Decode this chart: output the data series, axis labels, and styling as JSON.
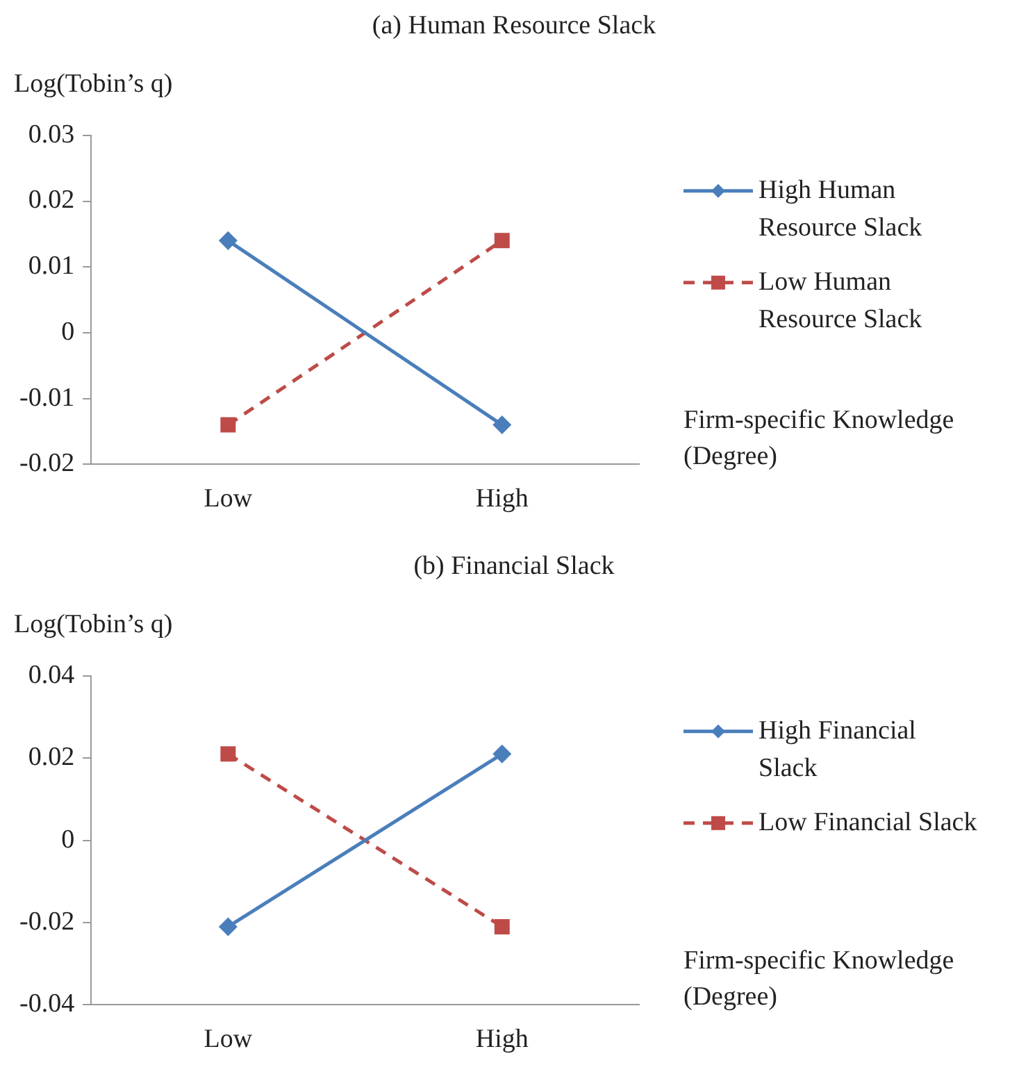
{
  "chart_data": [
    {
      "type": "line",
      "title": "(a) Human Resource Slack",
      "ylabel": "Log(Tobin’s q)",
      "xlabel": "Firm-specific Knowledge (Degree)",
      "categories": [
        "Low",
        "High"
      ],
      "ylim": [
        -0.02,
        0.03
      ],
      "yticks": [
        -0.02,
        -0.01,
        0,
        0.01,
        0.02,
        0.03
      ],
      "legend": "right",
      "series": [
        {
          "name": "High Human Resource Slack",
          "color": "#4a7ebb",
          "values": [
            0.014,
            -0.014
          ],
          "marker": "diamond",
          "line_style": "solid"
        },
        {
          "name": "Low Human Resource Slack",
          "color": "#be4b48",
          "values": [
            -0.014,
            0.014
          ],
          "marker": "square",
          "line_style": "dashed"
        }
      ]
    },
    {
      "type": "line",
      "title": "(b) Financial Slack",
      "ylabel": "Log(Tobin’s q)",
      "xlabel": "Firm-specific Knowledge (Degree)",
      "categories": [
        "Low",
        "High"
      ],
      "ylim": [
        -0.04,
        0.04
      ],
      "yticks": [
        -0.04,
        -0.02,
        0,
        0.02,
        0.04
      ],
      "legend": "right",
      "series": [
        {
          "name": "High Financial Slack",
          "color": "#4a7ebb",
          "values": [
            -0.021,
            0.021
          ],
          "marker": "diamond",
          "line_style": "solid"
        },
        {
          "name": "Low Financial Slack",
          "color": "#be4b48",
          "values": [
            0.021,
            -0.021
          ],
          "marker": "square",
          "line_style": "dashed"
        }
      ]
    }
  ]
}
